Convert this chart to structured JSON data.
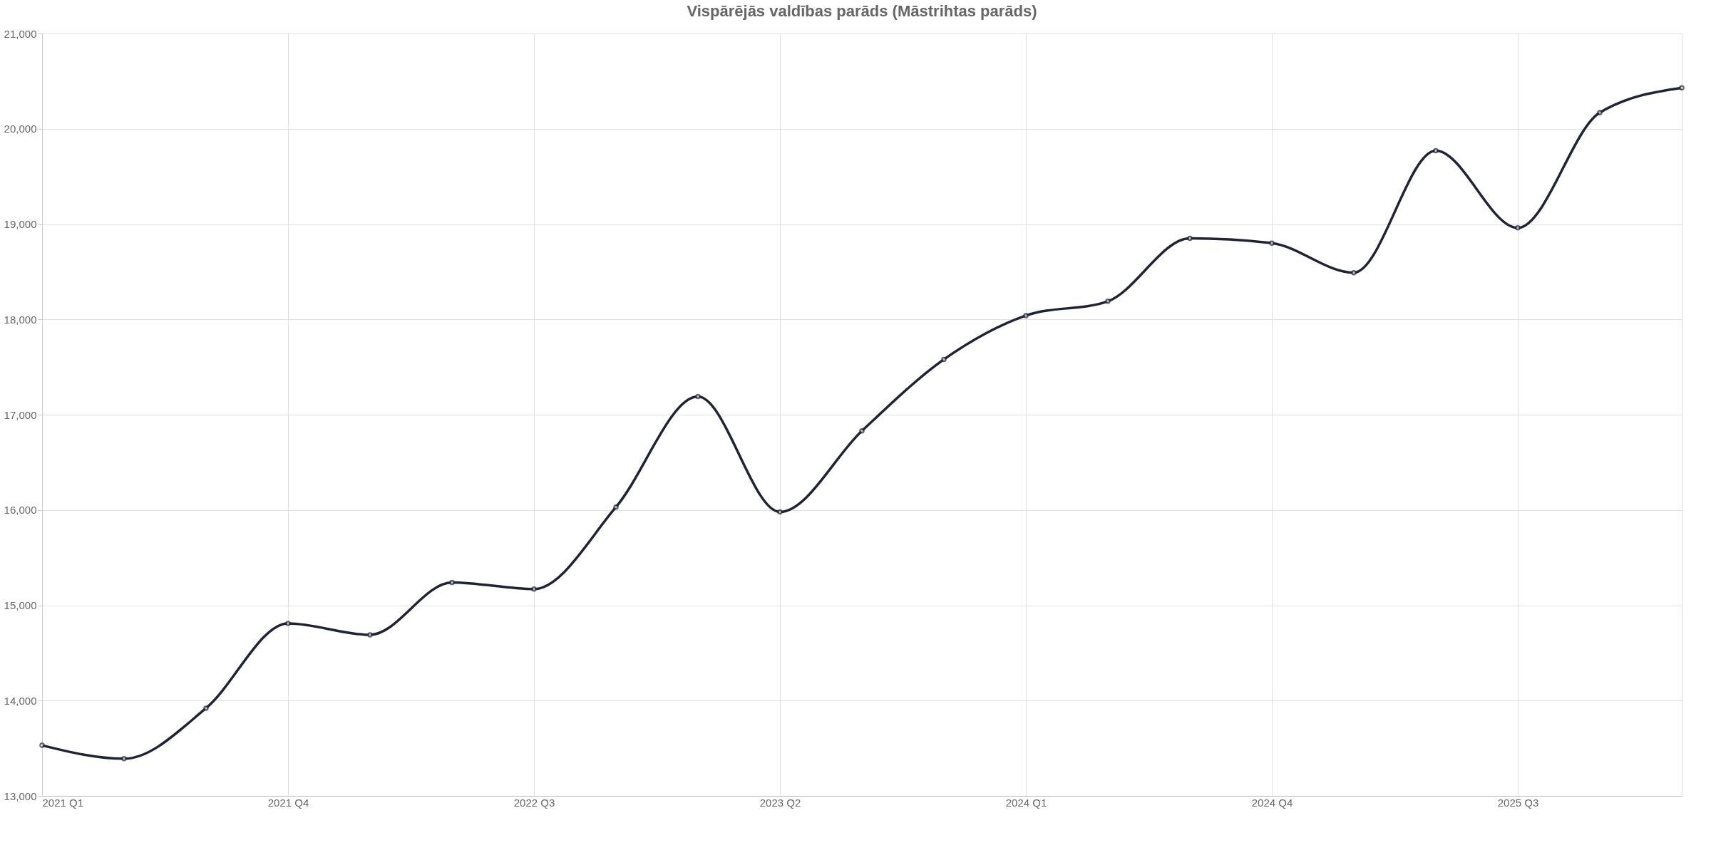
{
  "chart_data": {
    "type": "line",
    "title": "Vispārējās valdības parāds (Māstrihtas parāds)",
    "categories": [
      "2021 Q1",
      null,
      null,
      "2021 Q4",
      null,
      null,
      "2022 Q3",
      null,
      null,
      "2023 Q2",
      null,
      null,
      "2024 Q1",
      null,
      null,
      "2024 Q4",
      null,
      null,
      "2025 Q3",
      null,
      null
    ],
    "series": [
      {
        "color": "#1f2333",
        "values": [
          13530,
          13390,
          13920,
          14810,
          14690,
          15240,
          15170,
          16030,
          17190,
          15980,
          16830,
          17580,
          18040,
          18190,
          18850,
          18800,
          18490,
          19770,
          18960,
          20170,
          20430
        ]
      }
    ],
    "ylim": [
      13000,
      21000
    ],
    "yticks": [
      {
        "value": 13000,
        "label": "13,000"
      },
      {
        "value": 14000,
        "label": "14,000"
      },
      {
        "value": 15000,
        "label": "15,000"
      },
      {
        "value": 16000,
        "label": "16,000"
      },
      {
        "value": 17000,
        "label": "17,000"
      },
      {
        "value": 18000,
        "label": "18,000"
      },
      {
        "value": 19000,
        "label": "19,000"
      },
      {
        "value": 20000,
        "label": "20,000"
      },
      {
        "value": 21000,
        "label": "21,000"
      }
    ],
    "grid": true,
    "marker": "circle",
    "line_style": "solid",
    "legend": false
  }
}
